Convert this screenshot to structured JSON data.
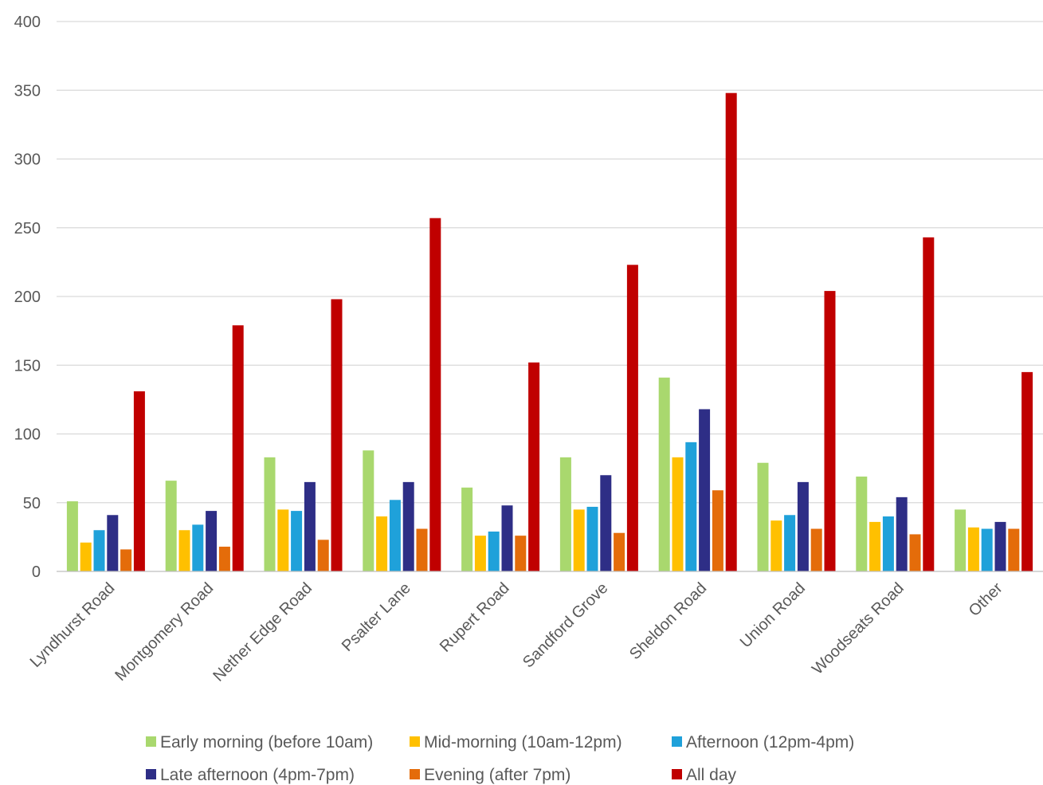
{
  "chart_data": {
    "type": "bar",
    "title": "",
    "xlabel": "",
    "ylabel": "",
    "ylim": [
      0,
      400
    ],
    "yticks": [
      0,
      50,
      100,
      150,
      200,
      250,
      300,
      350,
      400
    ],
    "grid": "horizontal",
    "legend_position": "bottom",
    "categories": [
      "Lyndhurst Road",
      "Montgomery Road",
      "Nether Edge Road",
      "Psalter Lane",
      "Rupert Road",
      "Sandford Grove",
      "Sheldon Road",
      "Union Road",
      "Woodseats Road",
      "Other"
    ],
    "series": [
      {
        "name": "Early morning (before 10am)",
        "color": "#a9d86e",
        "values": [
          51,
          66,
          83,
          88,
          61,
          83,
          141,
          79,
          69,
          45
        ]
      },
      {
        "name": "Mid-morning (10am-12pm)",
        "color": "#ffc000",
        "values": [
          21,
          30,
          45,
          40,
          26,
          45,
          83,
          37,
          36,
          32
        ]
      },
      {
        "name": "Afternoon (12pm-4pm)",
        "color": "#1fa1da",
        "values": [
          30,
          34,
          44,
          52,
          29,
          47,
          94,
          41,
          40,
          31
        ]
      },
      {
        "name": "Late afternoon (4pm-7pm)",
        "color": "#2e2e86",
        "values": [
          41,
          44,
          65,
          65,
          48,
          70,
          118,
          65,
          54,
          36
        ]
      },
      {
        "name": "Evening (after 7pm)",
        "color": "#e46c0a",
        "values": [
          16,
          18,
          23,
          31,
          26,
          28,
          59,
          31,
          27,
          31
        ]
      },
      {
        "name": "All day",
        "color": "#c00000",
        "values": [
          131,
          179,
          198,
          257,
          152,
          223,
          348,
          204,
          243,
          145
        ]
      }
    ]
  }
}
